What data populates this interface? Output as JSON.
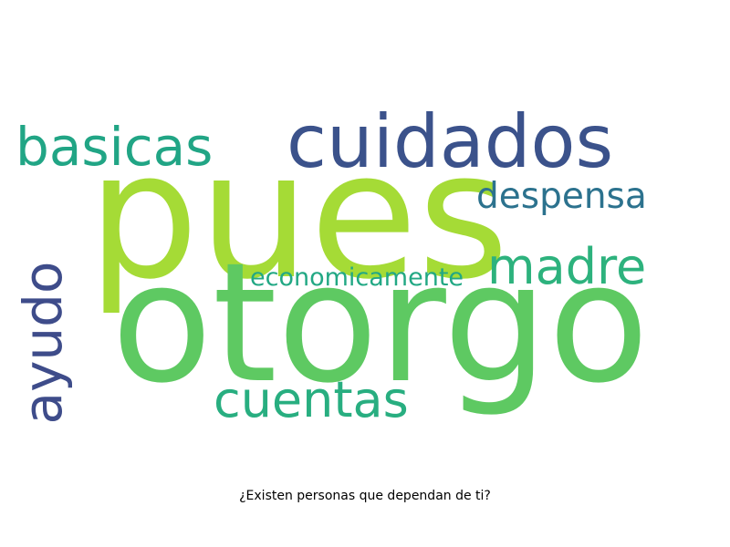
{
  "caption": "¿Existen personas que dependan de ti?",
  "words": [
    {
      "text": "pues",
      "color": "#a5db36"
    },
    {
      "text": "otorgo",
      "color": "#5ec962"
    },
    {
      "text": "cuidados",
      "color": "#3b528b"
    },
    {
      "text": "basicas",
      "color": "#21a585"
    },
    {
      "text": "despensa",
      "color": "#2c728e"
    },
    {
      "text": "madre",
      "color": "#2db27d"
    },
    {
      "text": "economicamente",
      "color": "#22a884"
    },
    {
      "text": "ayudo",
      "color": "#3e4c8a"
    },
    {
      "text": "cuentas",
      "color": "#28ae80"
    }
  ]
}
